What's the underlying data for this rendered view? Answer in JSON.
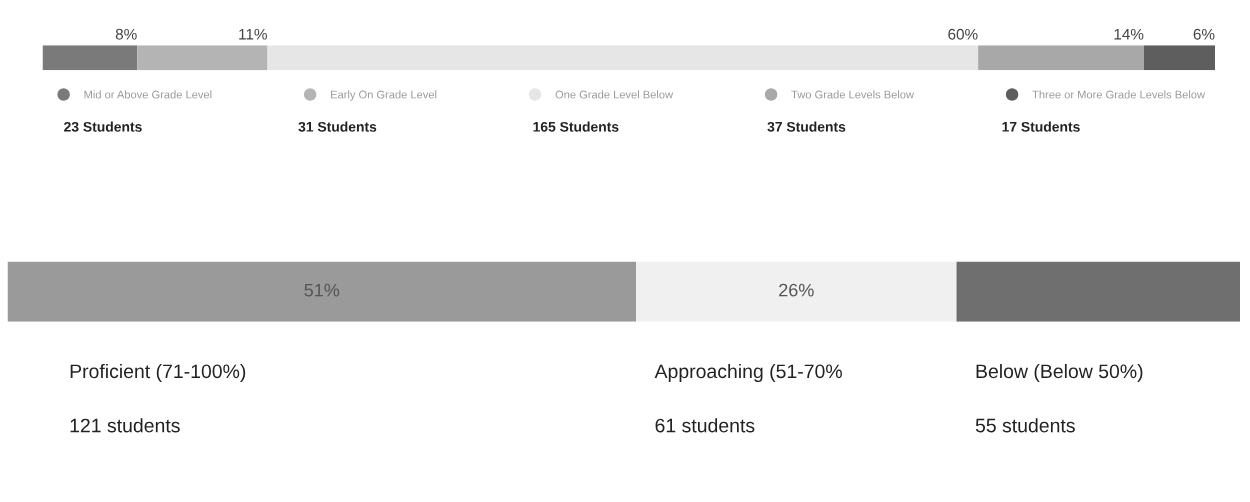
{
  "chart_data": [
    {
      "type": "bar",
      "orientation": "horizontal",
      "stacked": true,
      "categories": [
        null
      ],
      "legend": "bottom",
      "series": [
        {
          "name": "Mid or Above Grade Level",
          "color": "#7a7a7a",
          "values": [
            8
          ],
          "value_labels": [
            "8%"
          ]
        },
        {
          "name": "Early On Grade Level",
          "color": "#b4b4b4",
          "values": [
            11
          ],
          "value_labels": [
            "11%"
          ]
        },
        {
          "name": "One Grade Level Below",
          "color": "#e6e6e6",
          "values": [
            60
          ],
          "value_labels": [
            "60%"
          ]
        },
        {
          "name": "Two Grade Levels Below",
          "color": "#a8a8a8",
          "values": [
            14
          ],
          "value_labels": [
            "14%"
          ]
        },
        {
          "name": "Three or More Grade Levels Below",
          "color": "#5e5e5e",
          "values": [
            6
          ],
          "value_labels": [
            "6%"
          ]
        }
      ],
      "annotations": [
        "23 Students",
        "31 Students",
        "165 Students",
        "37 Students",
        "17 Students"
      ]
    },
    {
      "type": "bar",
      "orientation": "horizontal",
      "stacked": true,
      "categories": [
        null
      ],
      "legend": false,
      "series": [
        {
          "name": "Proficient (71-100%)",
          "color": "#9a9a9a",
          "values": [
            51
          ],
          "value_labels": [
            "51%"
          ]
        },
        {
          "name": "Approaching (51-70%",
          "color": "#f0f0f0",
          "values": [
            26
          ],
          "value_labels": [
            "26%"
          ]
        },
        {
          "name": "Below (Below 50%)",
          "color": "#6f6f6f",
          "values": [
            23
          ],
          "value_labels": [
            null
          ]
        }
      ],
      "annotations": [
        "121 students",
        "61 students",
        "55 students"
      ]
    }
  ]
}
